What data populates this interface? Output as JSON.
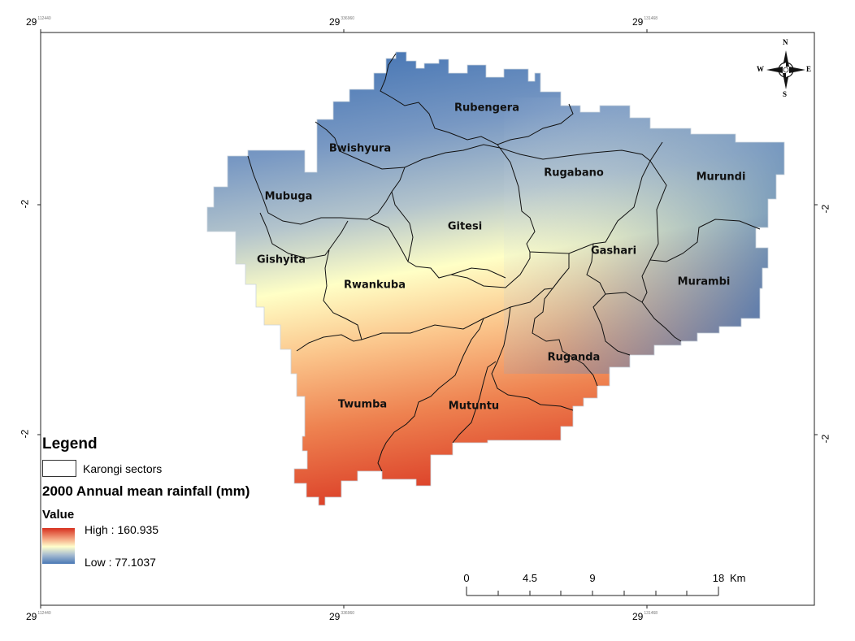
{
  "frame": {
    "top_ticks": [
      {
        "main": "29",
        "sup": "112440"
      },
      {
        "main": "29",
        "sup": "336960"
      },
      {
        "main": "29",
        "sup": "131468"
      }
    ],
    "bottom_ticks": [
      {
        "main": "29",
        "sup": "112440"
      },
      {
        "main": "29",
        "sup": "336960"
      },
      {
        "main": "29",
        "sup": "131468"
      }
    ],
    "left_ticks": [
      "-2",
      "-2"
    ],
    "right_ticks": [
      "-2",
      "-2"
    ]
  },
  "sectors": [
    {
      "name": "Rubengera"
    },
    {
      "name": "Bwishyura"
    },
    {
      "name": "Rugabano"
    },
    {
      "name": "Murundi"
    },
    {
      "name": "Mubuga"
    },
    {
      "name": "Gitesi"
    },
    {
      "name": "Gishyita"
    },
    {
      "name": "Gashari"
    },
    {
      "name": "Rwankuba"
    },
    {
      "name": "Murambi"
    },
    {
      "name": "Ruganda"
    },
    {
      "name": "Twumba"
    },
    {
      "name": "Mutuntu"
    }
  ],
  "legend": {
    "title": "Legend",
    "boundary_label": "Karongi sectors",
    "layer_title": "2000 Annual mean rainfall (mm)",
    "value_title": "Value",
    "high_label": "High : 160.935",
    "low_label": "Low : 77.1037",
    "high_color": "#d7301f",
    "low_color": "#4a78b5"
  },
  "scale_bar": {
    "labels": [
      "0",
      "4.5",
      "9",
      "18"
    ],
    "unit": "Km"
  },
  "compass": {
    "n": "N",
    "s": "S",
    "e": "E",
    "w": "W"
  }
}
